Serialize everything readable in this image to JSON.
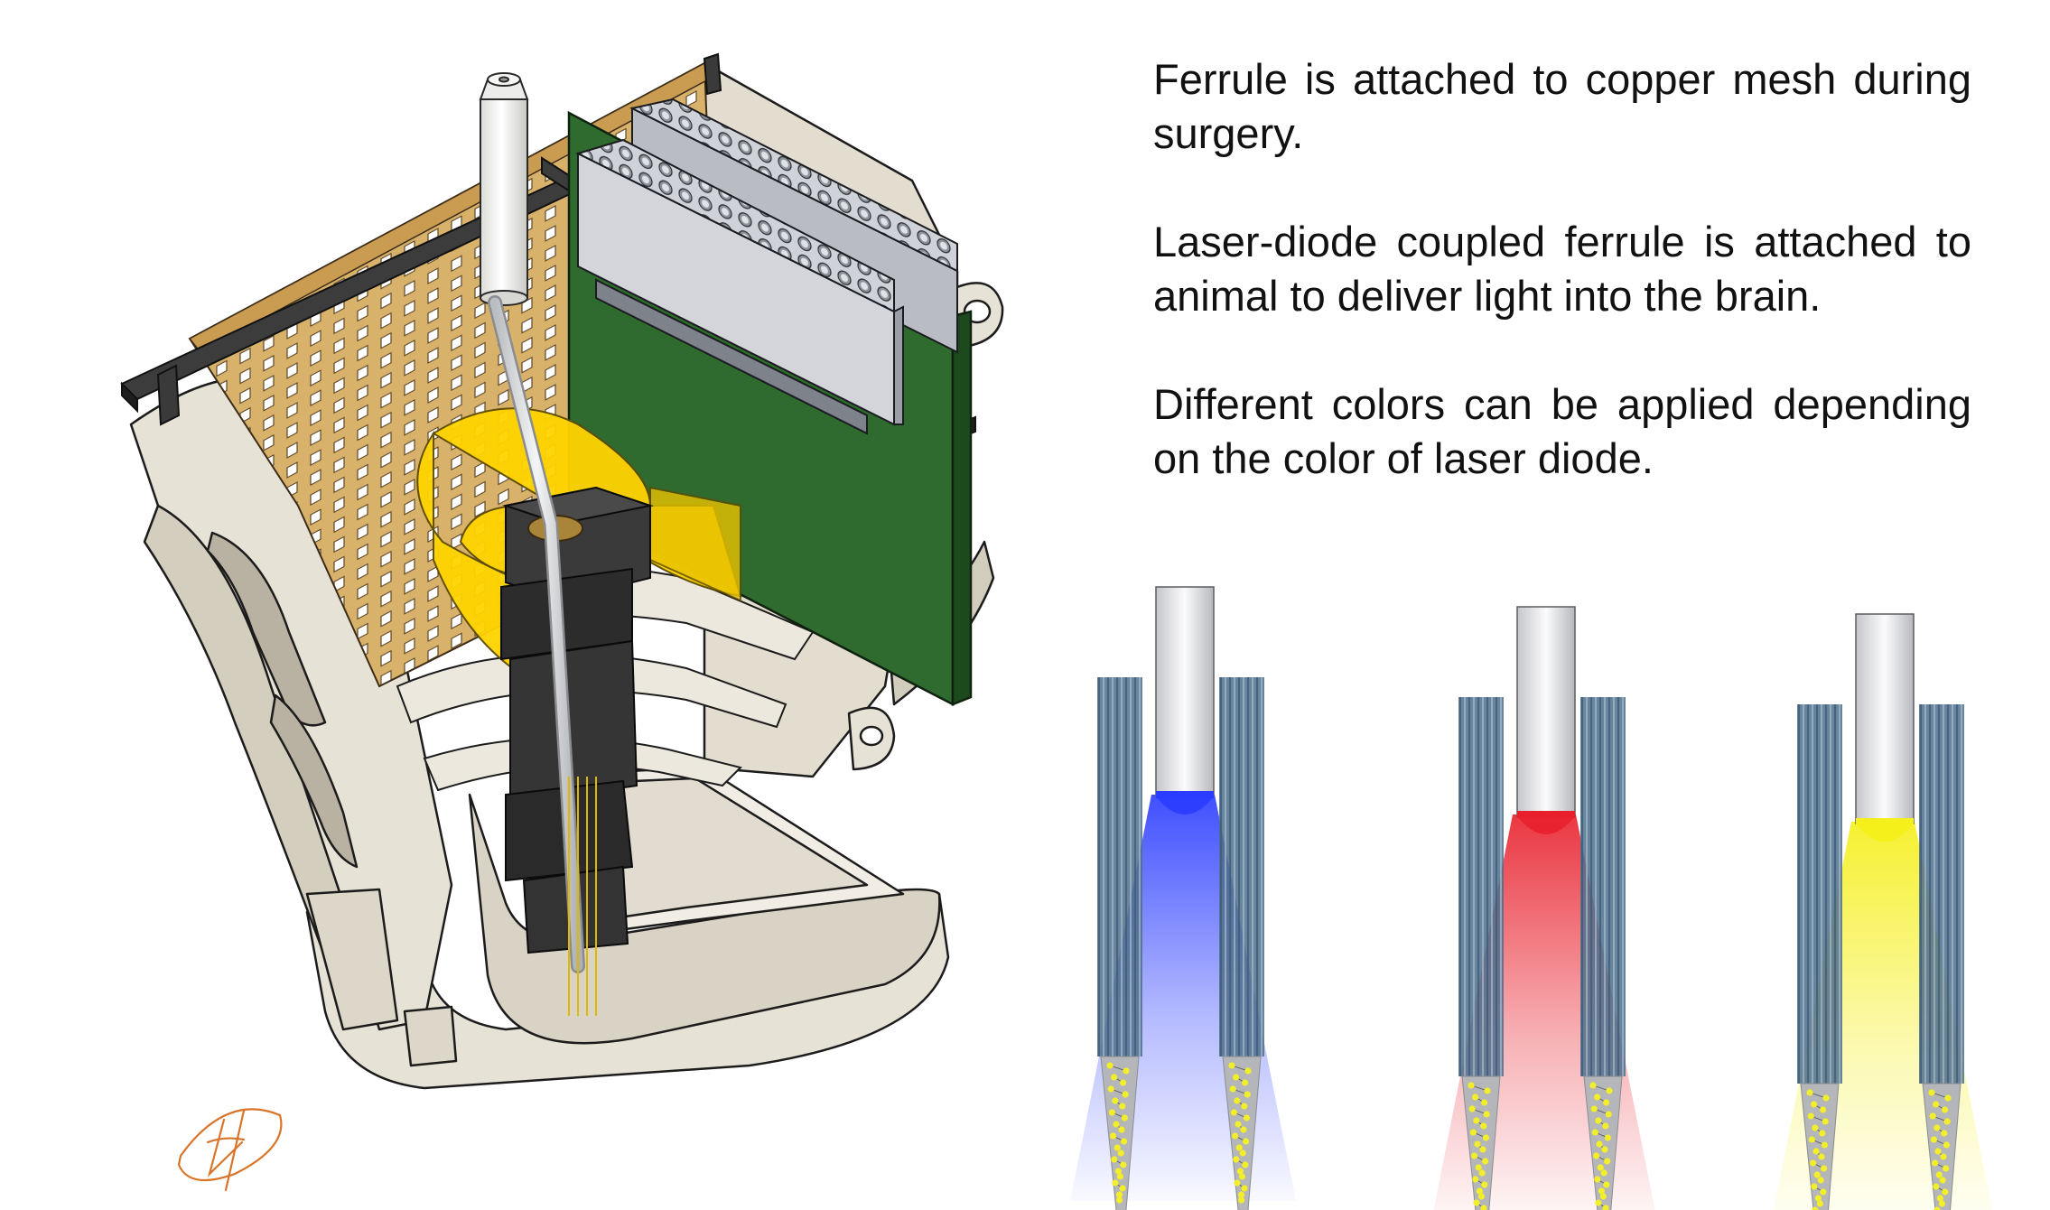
{
  "annotations": [
    "Ferrule is attached to copper mesh during surgery.",
    "Laser-diode coupled ferrule is attached to animal to deliver light into the brain.",
    "Different colors can be applied depending on the color of laser diode."
  ],
  "probe_panels": [
    {
      "light": "blue",
      "color": "#2a3cff"
    },
    {
      "light": "red",
      "color": "#e8202c"
    },
    {
      "light": "yellow",
      "color": "#f5ef1a"
    }
  ],
  "colors": {
    "shell": "#e7e2d6",
    "shell_dark": "#c9c3b4",
    "copper_mesh": "#d8b26a",
    "pcb_green": "#2f6a2e",
    "connector_grey": "#c9ccd2",
    "flex_yellow": "#ffd400",
    "holder_dark": "#2c2c2c",
    "fiber_bundle": "#4f6f8c",
    "electrode_sites": "#f2ee2a",
    "signature": "#d9742a"
  },
  "icons": [
    "signature-logo"
  ]
}
